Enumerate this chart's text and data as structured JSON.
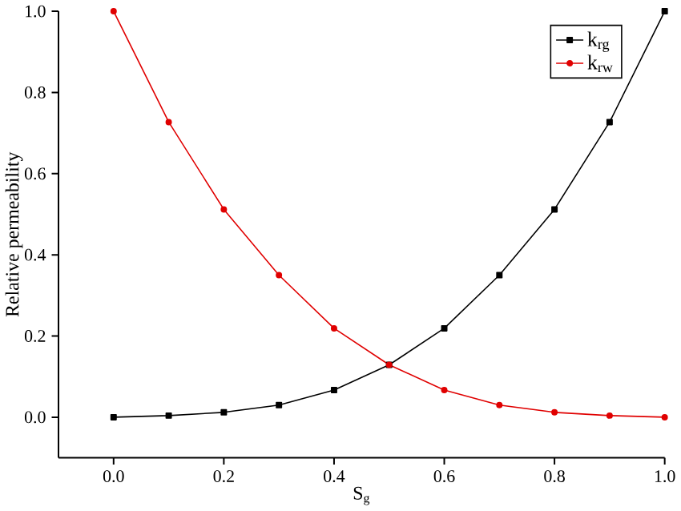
{
  "chart_data": {
    "type": "line",
    "xlabel": "S$_{g}$",
    "ylabel": "Relative permeability",
    "x": [
      0.0,
      0.1,
      0.2,
      0.3,
      0.4,
      0.5,
      0.6,
      0.7,
      0.8,
      0.9,
      1.0
    ],
    "series": [
      {
        "name": "k$_{rg}$",
        "color": "#000000",
        "marker": "square",
        "values": [
          0.0,
          0.004,
          0.012,
          0.03,
          0.067,
          0.129,
          0.219,
          0.35,
          0.512,
          0.727,
          1.0
        ]
      },
      {
        "name": "k$_{rw}$",
        "color": "#e00000",
        "marker": "circle",
        "values": [
          1.0,
          0.727,
          0.512,
          0.35,
          0.219,
          0.129,
          0.067,
          0.03,
          0.012,
          0.004,
          0.0
        ]
      }
    ],
    "xlim": [
      -0.1,
      1.0
    ],
    "ylim": [
      -0.1,
      1.0
    ],
    "xticks": [
      {
        "value": 0.0,
        "label": "0.0"
      },
      0.2,
      0.4,
      0.6,
      0.8,
      {
        "value": 1.0,
        "label": "1.0"
      }
    ],
    "yticks": [
      {
        "value": 0.0,
        "label": "0.0"
      },
      0.2,
      0.4,
      0.6,
      0.8,
      {
        "value": 1.0,
        "label": "1.0"
      }
    ],
    "legend": "top right",
    "grid": false,
    "line_style": "solid"
  }
}
